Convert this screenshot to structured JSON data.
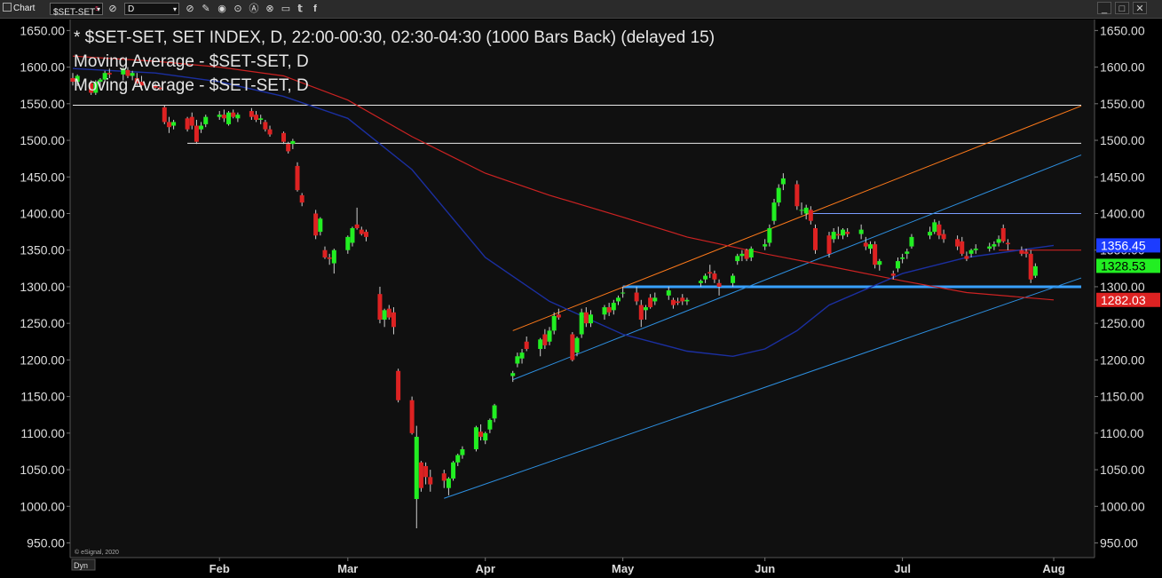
{
  "toolbar": {
    "chart_label": "Chart",
    "symbol": "$SET-SET",
    "symbol_sup": "5",
    "interval": "D",
    "icons": [
      "chart-icon",
      "link-icon",
      "pencil-icon",
      "eye-icon",
      "a-icon",
      "alert-icon",
      "window-icon",
      "twitter-icon",
      "facebook-icon"
    ]
  },
  "window_buttons": [
    "_",
    "□",
    "✕"
  ],
  "legend": [
    "* $SET-SET, SET INDEX, D, 22:00-00:30, 02:30-04:30 (1000 Bars Back) (delayed 15)",
    "Moving Average - $SET-SET, D",
    "Moving Average - $SET-SET, D"
  ],
  "footer": {
    "copyright": "© eSignal, 2020",
    "dyn_label": "Dyn"
  },
  "colors": {
    "background": "#101010",
    "up": "#22ee22",
    "down": "#dd2222",
    "ma_short": "#1b2fa0",
    "ma_long": "#cc2222",
    "channel": "#2d8fe0",
    "channel_upper": "#ff7a1a",
    "support": "#38a0ff"
  },
  "chart_data": {
    "type": "candlestick",
    "title": "* $SET-SET, SET INDEX, D, 22:00-00:30, 02:30-04:30 (1000 Bars Back) (delayed 15)",
    "y_ticks": [
      "1650.00",
      "1600.00",
      "1550.00",
      "1500.00",
      "1450.00",
      "1400.00",
      "1350.00",
      "1300.00",
      "1250.00",
      "1200.00",
      "1150.00",
      "1100.00",
      "1050.00",
      "1000.00",
      "950.00"
    ],
    "ylim": [
      930,
      1665
    ],
    "x_labels": [
      {
        "label": "Feb",
        "date": "2020-02-03"
      },
      {
        "label": "Mar",
        "date": "2020-03-02"
      },
      {
        "label": "Apr",
        "date": "2020-04-01"
      },
      {
        "label": "May",
        "date": "2020-05-01"
      },
      {
        "label": "Jun",
        "date": "2020-06-01"
      },
      {
        "label": "Jul",
        "date": "2020-07-01"
      },
      {
        "label": "Aug",
        "date": "2020-08-03"
      }
    ],
    "xlim": [
      "2020-01-02",
      "2020-08-09"
    ],
    "last_values": [
      {
        "label": "1356.45",
        "value": 1356.45,
        "color": "#1c3cff"
      },
      {
        "label": "1328.53",
        "value": 1328.53,
        "color": "#22ee22"
      },
      {
        "label": "1282.03",
        "value": 1282.03,
        "color": "#dd2222"
      }
    ],
    "candles": [
      [
        "2020-01-02",
        1585,
        1592,
        1575,
        1580
      ],
      [
        "2020-01-03",
        1580,
        1590,
        1574,
        1588
      ],
      [
        "2020-01-06",
        1578,
        1582,
        1562,
        1565
      ],
      [
        "2020-01-07",
        1565,
        1582,
        1562,
        1580
      ],
      [
        "2020-01-08",
        1580,
        1585,
        1572,
        1583
      ],
      [
        "2020-01-09",
        1583,
        1595,
        1580,
        1592
      ],
      [
        "2020-01-10",
        1592,
        1598,
        1585,
        1590
      ],
      [
        "2020-01-13",
        1590,
        1600,
        1582,
        1598
      ],
      [
        "2020-01-14",
        1596,
        1600,
        1585,
        1588
      ],
      [
        "2020-01-15",
        1588,
        1595,
        1582,
        1592
      ],
      [
        "2020-01-16",
        1585,
        1592,
        1575,
        1578
      ],
      [
        "2020-01-17",
        1580,
        1588,
        1572,
        1575
      ],
      [
        "2020-01-20",
        1575,
        1578,
        1568,
        1572
      ],
      [
        "2020-01-21",
        1572,
        1575,
        1568,
        1570
      ],
      [
        "2020-01-22",
        1545,
        1548,
        1522,
        1525
      ],
      [
        "2020-01-23",
        1525,
        1532,
        1510,
        1518
      ],
      [
        "2020-01-24",
        1520,
        1528,
        1515,
        1525
      ],
      [
        "2020-01-27",
        1530,
        1532,
        1512,
        1515
      ],
      [
        "2020-01-28",
        1532,
        1538,
        1515,
        1520
      ],
      [
        "2020-01-29",
        1520,
        1528,
        1495,
        1498
      ],
      [
        "2020-01-30",
        1515,
        1525,
        1510,
        1520
      ],
      [
        "2020-01-31",
        1522,
        1535,
        1518,
        1532
      ],
      [
        "2020-02-03",
        1532,
        1540,
        1528,
        1535
      ],
      [
        "2020-02-04",
        1535,
        1542,
        1525,
        1530
      ],
      [
        "2020-02-05",
        1522,
        1540,
        1520,
        1538
      ],
      [
        "2020-02-06",
        1538,
        1542,
        1530,
        1532
      ],
      [
        "2020-02-07",
        1530,
        1538,
        1525,
        1535
      ],
      [
        "2020-02-10",
        1540,
        1544,
        1528,
        1532
      ],
      [
        "2020-02-11",
        1535,
        1540,
        1525,
        1528
      ],
      [
        "2020-02-12",
        1528,
        1535,
        1522,
        1530
      ],
      [
        "2020-02-13",
        1525,
        1528,
        1512,
        1515
      ],
      [
        "2020-02-14",
        1515,
        1520,
        1505,
        1508
      ],
      [
        "2020-02-17",
        1510,
        1512,
        1495,
        1498
      ],
      [
        "2020-02-18",
        1495,
        1498,
        1482,
        1485
      ],
      [
        "2020-02-19",
        1495,
        1502,
        1488,
        1499
      ],
      [
        "2020-02-20",
        1465,
        1470,
        1430,
        1432
      ],
      [
        "2020-02-21",
        1425,
        1428,
        1410,
        1415
      ],
      [
        "2020-02-24",
        1400,
        1405,
        1365,
        1370
      ],
      [
        "2020-02-25",
        1375,
        1395,
        1370,
        1393
      ],
      [
        "2020-02-26",
        1350,
        1355,
        1338,
        1340
      ],
      [
        "2020-02-27",
        1340,
        1345,
        1330,
        1338
      ],
      [
        "2020-02-28",
        1332,
        1352,
        1318,
        1350
      ],
      [
        "2020-03-02",
        1350,
        1370,
        1345,
        1368
      ],
      [
        "2020-03-03",
        1360,
        1382,
        1355,
        1380
      ],
      [
        "2020-03-04",
        1385,
        1408,
        1378,
        1380
      ],
      [
        "2020-03-05",
        1378,
        1382,
        1370,
        1372
      ],
      [
        "2020-03-06",
        1375,
        1378,
        1362,
        1368
      ],
      [
        "2020-03-09",
        1290,
        1300,
        1250,
        1255
      ],
      [
        "2020-03-10",
        1255,
        1270,
        1245,
        1268
      ],
      [
        "2020-03-11",
        1270,
        1275,
        1255,
        1258
      ],
      [
        "2020-03-12",
        1265,
        1272,
        1235,
        1245
      ],
      [
        "2020-03-13",
        1185,
        1188,
        1142,
        1145
      ],
      [
        "2020-03-16",
        1145,
        1150,
        1098,
        1100
      ],
      [
        "2020-03-17",
        1010,
        1110,
        970,
        1095
      ],
      [
        "2020-03-18",
        1060,
        1062,
        1020,
        1025
      ],
      [
        "2020-03-19",
        1055,
        1060,
        1030,
        1040
      ],
      [
        "2020-03-20",
        1040,
        1050,
        1020,
        1030
      ],
      [
        "2020-03-23",
        1045,
        1050,
        1025,
        1035
      ],
      [
        "2020-03-24",
        1025,
        1040,
        1015,
        1038
      ],
      [
        "2020-03-25",
        1038,
        1062,
        1035,
        1060
      ],
      [
        "2020-03-26",
        1060,
        1072,
        1055,
        1070
      ],
      [
        "2020-03-27",
        1070,
        1082,
        1065,
        1078
      ],
      [
        "2020-03-30",
        1078,
        1110,
        1075,
        1108
      ],
      [
        "2020-03-31",
        1102,
        1112,
        1090,
        1095
      ],
      [
        "2020-04-01",
        1090,
        1102,
        1085,
        1100
      ],
      [
        "2020-04-02",
        1105,
        1120,
        1100,
        1118
      ],
      [
        "2020-04-03",
        1120,
        1140,
        1115,
        1138
      ],
      [
        "2020-04-07",
        1178,
        1185,
        1170,
        1182
      ],
      [
        "2020-04-08",
        1195,
        1210,
        1190,
        1205
      ],
      [
        "2020-04-09",
        1202,
        1215,
        1195,
        1210
      ],
      [
        "2020-04-10",
        1225,
        1232,
        1212,
        1215
      ],
      [
        "2020-04-13",
        1215,
        1230,
        1205,
        1228
      ],
      [
        "2020-04-14",
        1235,
        1242,
        1215,
        1220
      ],
      [
        "2020-04-15",
        1225,
        1245,
        1220,
        1240
      ],
      [
        "2020-04-16",
        1240,
        1265,
        1235,
        1260
      ],
      [
        "2020-04-17",
        1262,
        1270,
        1255,
        1258
      ],
      [
        "2020-04-20",
        1235,
        1238,
        1198,
        1200
      ],
      [
        "2020-04-21",
        1210,
        1232,
        1205,
        1230
      ],
      [
        "2020-04-22",
        1235,
        1270,
        1230,
        1265
      ],
      [
        "2020-04-23",
        1265,
        1272,
        1245,
        1250
      ],
      [
        "2020-04-24",
        1250,
        1268,
        1245,
        1262
      ],
      [
        "2020-04-27",
        1262,
        1275,
        1255,
        1272
      ],
      [
        "2020-04-28",
        1272,
        1278,
        1260,
        1265
      ],
      [
        "2020-04-29",
        1268,
        1282,
        1262,
        1278
      ],
      [
        "2020-04-30",
        1280,
        1288,
        1275,
        1285
      ],
      [
        "2020-05-01",
        1292,
        1300,
        1285,
        1292
      ],
      [
        "2020-05-04",
        1292,
        1300,
        1275,
        1280
      ],
      [
        "2020-05-05",
        1275,
        1282,
        1245,
        1255
      ],
      [
        "2020-05-06",
        1268,
        1275,
        1255,
        1272
      ],
      [
        "2020-05-07",
        1285,
        1290,
        1270,
        1272
      ],
      [
        "2020-05-08",
        1280,
        1292,
        1275,
        1285
      ],
      [
        "2020-05-11",
        1288,
        1300,
        1282,
        1295
      ],
      [
        "2020-05-12",
        1282,
        1285,
        1270,
        1275
      ],
      [
        "2020-05-13",
        1280,
        1285,
        1275,
        1278
      ],
      [
        "2020-05-14",
        1285,
        1290,
        1275,
        1280
      ],
      [
        "2020-05-15",
        1280,
        1285,
        1275,
        1282
      ],
      [
        "2020-05-18",
        1305,
        1310,
        1300,
        1308
      ],
      [
        "2020-05-19",
        1310,
        1318,
        1305,
        1315
      ],
      [
        "2020-05-20",
        1320,
        1330,
        1312,
        1318
      ],
      [
        "2020-05-21",
        1318,
        1322,
        1305,
        1310
      ],
      [
        "2020-05-22",
        1305,
        1310,
        1288,
        1300
      ],
      [
        "2020-05-25",
        1305,
        1318,
        1300,
        1315
      ],
      [
        "2020-05-26",
        1335,
        1345,
        1330,
        1342
      ],
      [
        "2020-05-27",
        1342,
        1350,
        1335,
        1345
      ],
      [
        "2020-05-28",
        1350,
        1352,
        1335,
        1338
      ],
      [
        "2020-05-29",
        1340,
        1355,
        1335,
        1352
      ],
      [
        "2020-06-01",
        1355,
        1365,
        1350,
        1358
      ],
      [
        "2020-06-02",
        1360,
        1385,
        1355,
        1380
      ],
      [
        "2020-06-03",
        1390,
        1420,
        1385,
        1415
      ],
      [
        "2020-06-04",
        1415,
        1440,
        1410,
        1435
      ],
      [
        "2020-06-05",
        1440,
        1455,
        1432,
        1448
      ],
      [
        "2020-06-08",
        1440,
        1445,
        1405,
        1410
      ],
      [
        "2020-06-09",
        1405,
        1415,
        1398,
        1405
      ],
      [
        "2020-06-10",
        1400,
        1412,
        1392,
        1408
      ],
      [
        "2020-06-11",
        1405,
        1410,
        1385,
        1390
      ],
      [
        "2020-06-12",
        1380,
        1385,
        1345,
        1350
      ],
      [
        "2020-06-15",
        1370,
        1375,
        1340,
        1345
      ],
      [
        "2020-06-16",
        1365,
        1380,
        1360,
        1375
      ],
      [
        "2020-06-17",
        1372,
        1382,
        1365,
        1370
      ],
      [
        "2020-06-18",
        1370,
        1380,
        1365,
        1378
      ],
      [
        "2020-06-19",
        1375,
        1380,
        1368,
        1372
      ],
      [
        "2020-06-22",
        1372,
        1385,
        1365,
        1378
      ],
      [
        "2020-06-23",
        1360,
        1368,
        1350,
        1355
      ],
      [
        "2020-06-24",
        1352,
        1362,
        1345,
        1358
      ],
      [
        "2020-06-25",
        1358,
        1362,
        1325,
        1330
      ],
      [
        "2020-06-26",
        1330,
        1338,
        1322,
        1335
      ],
      [
        "2020-06-29",
        1318,
        1322,
        1310,
        1315
      ],
      [
        "2020-06-30",
        1325,
        1340,
        1320,
        1335
      ],
      [
        "2020-07-01",
        1338,
        1345,
        1332,
        1340
      ],
      [
        "2020-07-02",
        1345,
        1352,
        1338,
        1348
      ],
      [
        "2020-07-03",
        1355,
        1372,
        1352,
        1368
      ],
      [
        "2020-07-07",
        1370,
        1382,
        1365,
        1375
      ],
      [
        "2020-07-08",
        1375,
        1392,
        1372,
        1388
      ],
      [
        "2020-07-09",
        1385,
        1390,
        1365,
        1370
      ],
      [
        "2020-07-10",
        1372,
        1378,
        1360,
        1365
      ],
      [
        "2020-07-13",
        1365,
        1370,
        1350,
        1355
      ],
      [
        "2020-07-14",
        1362,
        1368,
        1342,
        1345
      ],
      [
        "2020-07-15",
        1342,
        1348,
        1335,
        1338
      ],
      [
        "2020-07-16",
        1345,
        1352,
        1340,
        1350
      ],
      [
        "2020-07-17",
        1350,
        1358,
        1345,
        1352
      ],
      [
        "2020-07-20",
        1352,
        1360,
        1348,
        1355
      ],
      [
        "2020-07-21",
        1355,
        1362,
        1350,
        1358
      ],
      [
        "2020-07-22",
        1360,
        1370,
        1355,
        1365
      ],
      [
        "2020-07-23",
        1380,
        1385,
        1360,
        1362
      ],
      [
        "2020-07-24",
        1360,
        1365,
        1350,
        1358
      ],
      [
        "2020-07-27",
        1350,
        1355,
        1342,
        1345
      ],
      [
        "2020-07-28",
        1348,
        1352,
        1340,
        1345
      ],
      [
        "2020-07-29",
        1345,
        1350,
        1305,
        1310
      ],
      [
        "2020-07-30",
        1315,
        1332,
        1312,
        1328
      ]
    ],
    "ma_short": [
      [
        "2020-01-02",
        1598
      ],
      [
        "2020-01-20",
        1592
      ],
      [
        "2020-02-03",
        1580
      ],
      [
        "2020-02-17",
        1560
      ],
      [
        "2020-03-02",
        1530
      ],
      [
        "2020-03-16",
        1460
      ],
      [
        "2020-04-01",
        1340
      ],
      [
        "2020-04-15",
        1280
      ],
      [
        "2020-05-01",
        1235
      ],
      [
        "2020-05-15",
        1212
      ],
      [
        "2020-05-25",
        1205
      ],
      [
        "2020-06-01",
        1215
      ],
      [
        "2020-06-08",
        1240
      ],
      [
        "2020-06-15",
        1275
      ],
      [
        "2020-07-01",
        1318
      ],
      [
        "2020-07-15",
        1340
      ],
      [
        "2020-08-03",
        1356.45
      ]
    ],
    "ma_long": [
      [
        "2020-01-02",
        1615
      ],
      [
        "2020-01-20",
        1608
      ],
      [
        "2020-02-03",
        1600
      ],
      [
        "2020-02-17",
        1588
      ],
      [
        "2020-03-02",
        1555
      ],
      [
        "2020-03-16",
        1505
      ],
      [
        "2020-04-01",
        1455
      ],
      [
        "2020-04-15",
        1425
      ],
      [
        "2020-05-01",
        1395
      ],
      [
        "2020-05-15",
        1368
      ],
      [
        "2020-06-01",
        1345
      ],
      [
        "2020-06-15",
        1328
      ],
      [
        "2020-07-01",
        1308
      ],
      [
        "2020-07-15",
        1292
      ],
      [
        "2020-08-03",
        1282.03
      ]
    ],
    "lines": [
      {
        "name": "horizontal-1550",
        "kind": "h",
        "value": 1548,
        "from": "2020-01-02",
        "to": "2020-08-09",
        "color": "#e8e8e8"
      },
      {
        "name": "horizontal-1500",
        "kind": "h",
        "value": 1496,
        "from": "2020-01-27",
        "to": "2020-08-09",
        "color": "#e8e8e8"
      },
      {
        "name": "horizontal-1400",
        "kind": "h",
        "value": 1400,
        "from": "2020-06-10",
        "to": "2020-08-09",
        "color": "#7a9cff"
      },
      {
        "name": "horizontal-1350",
        "kind": "h",
        "value": 1350,
        "from": "2020-07-22",
        "to": "2020-08-09",
        "color": "#dd2222"
      },
      {
        "name": "support-1300",
        "kind": "h",
        "value": 1300,
        "from": "2020-05-01",
        "to": "2020-08-09",
        "color": "#38a0ff",
        "width": 3
      },
      {
        "name": "lower-trendline",
        "from": [
          "2020-03-23",
          1011
        ],
        "to": [
          "2020-08-09",
          1312
        ],
        "color": "#2d8fe0"
      },
      {
        "name": "channel-lower",
        "from": [
          "2020-04-07",
          1173
        ],
        "to": [
          "2020-08-09",
          1480
        ],
        "color": "#2d8fe0"
      },
      {
        "name": "channel-upper",
        "from": [
          "2020-04-07",
          1240
        ],
        "to": [
          "2020-08-09",
          1547
        ],
        "color": "#ff7a1a"
      }
    ]
  }
}
